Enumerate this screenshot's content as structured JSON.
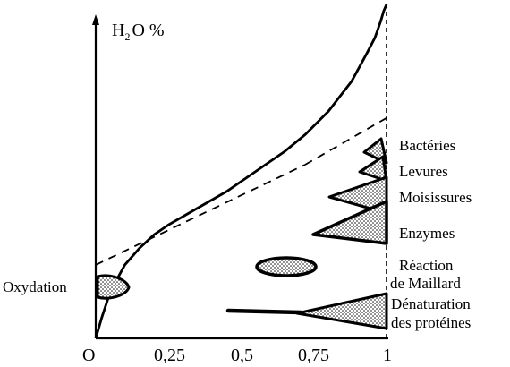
{
  "chart_data": {
    "type": "line",
    "xlabel": "",
    "ylabel_parts": {
      "pre": "H",
      "sub": "2",
      "post": "O %"
    },
    "xlim": [
      0,
      1
    ],
    "x_ticks": [
      {
        "v": 0,
        "label": "O"
      },
      {
        "v": 0.25,
        "label": "0,25"
      },
      {
        "v": 0.5,
        "label": "0,5"
      },
      {
        "v": 0.75,
        "label": "0,75"
      },
      {
        "v": 1,
        "label": "1"
      }
    ],
    "series": [
      {
        "values_note": "",
        "x": [
          0.0,
          0.02,
          0.05,
          0.1,
          0.15,
          0.2,
          0.25,
          0.35,
          0.45,
          0.55,
          0.65,
          0.72,
          0.8,
          0.88,
          0.93,
          0.96,
          0.98,
          0.99,
          1.0
        ],
        "y": [
          0.0,
          0.06,
          0.14,
          0.22,
          0.27,
          0.31,
          0.34,
          0.39,
          0.44,
          0.5,
          0.56,
          0.61,
          0.68,
          0.77,
          0.85,
          0.9,
          0.95,
          0.98,
          1.0
        ]
      }
    ],
    "dashed_lines": [
      {
        "x": [
          0.0,
          0.72
        ],
        "y": [
          0.22,
          0.52
        ]
      },
      {
        "x": [
          0.72,
          1.0
        ],
        "y": [
          0.52,
          0.66
        ]
      }
    ],
    "zones": {
      "bacteries": "Bactéries",
      "levures": "Levures",
      "moisissures": "Moisissures",
      "enzymes": "Enzymes",
      "maillard": [
        "Réaction",
        "de Maillard"
      ],
      "proteines": [
        "Dénaturation",
        "des protéines"
      ],
      "oxydation": "Oxydation"
    }
  }
}
